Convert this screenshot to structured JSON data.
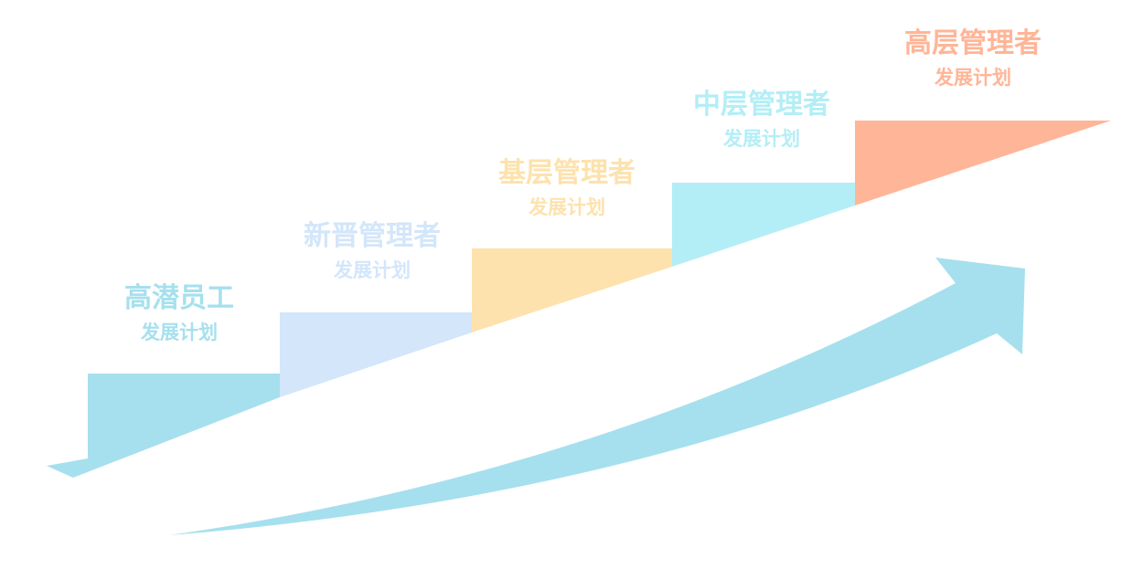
{
  "colors": {
    "step1": "#a6e0ee",
    "step2": "#d3e6fa",
    "step3": "#fde2ae",
    "step4": "#b3eef6",
    "step5": "#ffb597",
    "arrow": "#a6e0ee"
  },
  "steps": [
    {
      "title": "高潜员工",
      "subtitle": "发展计划",
      "color": "#a6e0ee"
    },
    {
      "title": "新晋管理者",
      "subtitle": "发展计划",
      "color": "#d3e6fa"
    },
    {
      "title": "基层管理者",
      "subtitle": "发展计划",
      "color": "#fde2ae"
    },
    {
      "title": "中层管理者",
      "subtitle": "发展计划",
      "color": "#b3eef6"
    },
    {
      "title": "高层管理者",
      "subtitle": "发展计划",
      "color": "#ffb597"
    }
  ]
}
